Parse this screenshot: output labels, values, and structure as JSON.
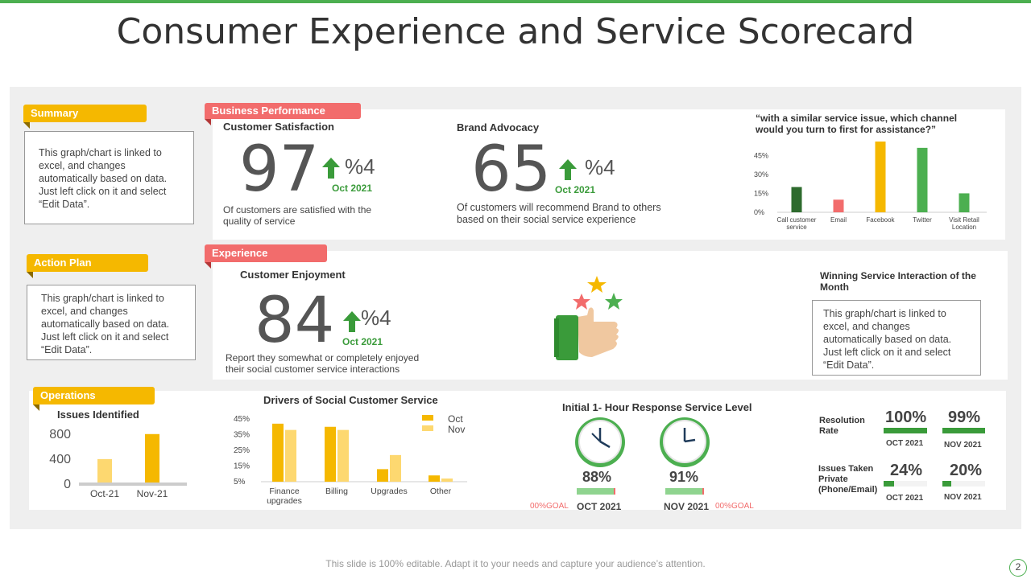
{
  "title": "Consumer Experience and Service Scorecard",
  "colors": {
    "green": "#4caf50",
    "yellow": "#f5b800",
    "lightyellow": "#fdd870",
    "red": "#f26c6c",
    "darkgreen": "#2e6b2e"
  },
  "summary": {
    "tag": "Summary",
    "note": "This graph/chart is linked to excel, and changes automatically based on data. Just left click on it and select “Edit Data”."
  },
  "action_plan": {
    "tag": "Action Plan",
    "note": "This graph/chart is linked to excel, and changes automatically based on data. Just left click on it and select “Edit Data”."
  },
  "business": {
    "tag": "Business Performance",
    "satisfaction": {
      "label": "Customer Satisfaction",
      "value": "97",
      "change": "%4",
      "date": "Oct 2021",
      "desc": "Of customers are satisfied with the quality of service"
    },
    "advocacy": {
      "label": "Brand Advocacy",
      "value": "65",
      "change": "%4",
      "date": "Oct 2021",
      "desc": "Of customers will recommend Brand to others based on their social service experience"
    }
  },
  "experience": {
    "tag": "Experience",
    "enjoyment": {
      "label": "Customer  Enjoyment",
      "value": "84",
      "change": "%4",
      "date": "Oct 2021",
      "desc": "Report they somewhat or completely enjoyed their social customer service interactions"
    },
    "winning": {
      "title": "Winning Service Interaction of the Month",
      "note": "This graph/chart is linked to excel, and changes automatically based on data. Just left click on it and select “Edit Data”."
    }
  },
  "operations": {
    "tag": "Operations",
    "response": {
      "title": "Initial 1- Hour Response Service Level",
      "oct": {
        "pct": "88%",
        "label": "OCT 2021",
        "goal": "00%GOAL"
      },
      "nov": {
        "pct": "91%",
        "label": "NOV 2021",
        "goal": "00%GOAL"
      }
    },
    "resolution": {
      "label": "Resolution Rate",
      "oct": {
        "pct": "100%",
        "label": "OCT 2021"
      },
      "nov": {
        "pct": "99%",
        "label": "NOV 2021"
      }
    },
    "issues_private": {
      "label": "Issues Taken Private (Phone/Email)",
      "oct": {
        "pct": "24%",
        "label": "OCT 2021"
      },
      "nov": {
        "pct": "20%",
        "label": "NOV 2021"
      }
    }
  },
  "footer": {
    "text": "This slide is 100% editable. Adapt it to your needs and capture your audience’s attention.",
    "page": "2"
  },
  "chart_data": [
    {
      "type": "bar",
      "title": "“with a similar service issue, which channel would you turn to first for assistance?”",
      "categories": [
        "Call customer service",
        "Email",
        "Facebook",
        "Twitter",
        "Visit Retail Location"
      ],
      "values": [
        20,
        10,
        56,
        51,
        15
      ],
      "yticks": [
        "0%",
        "15%",
        "30%",
        "45%"
      ],
      "ylim": [
        0,
        56
      ],
      "colors": [
        "#2e6b2e",
        "#f26c6c",
        "#f5b800",
        "#4caf50",
        "#4caf50"
      ]
    },
    {
      "type": "bar",
      "title": "Issues Identified",
      "categories": [
        "Oct-21",
        "Nov-21"
      ],
      "values": [
        400,
        800
      ],
      "yticks": [
        "0",
        "400",
        "800"
      ],
      "ylim": [
        0,
        900
      ],
      "colors": [
        "#fdd870",
        "#f5b800"
      ]
    },
    {
      "type": "bar",
      "title": "Drivers of Social Customer  Service",
      "categories": [
        "Finance upgrades",
        "Billing",
        "Upgrades",
        "Other"
      ],
      "series": [
        {
          "name": "Oct",
          "values": [
            42,
            40,
            13,
            9
          ],
          "color": "#f5b800"
        },
        {
          "name": "Nov",
          "values": [
            38,
            38,
            22,
            7
          ],
          "color": "#fdd870"
        }
      ],
      "yticks": [
        "5%",
        "15%",
        "25%",
        "35%",
        "45%"
      ],
      "ylim": [
        5,
        45
      ]
    }
  ]
}
